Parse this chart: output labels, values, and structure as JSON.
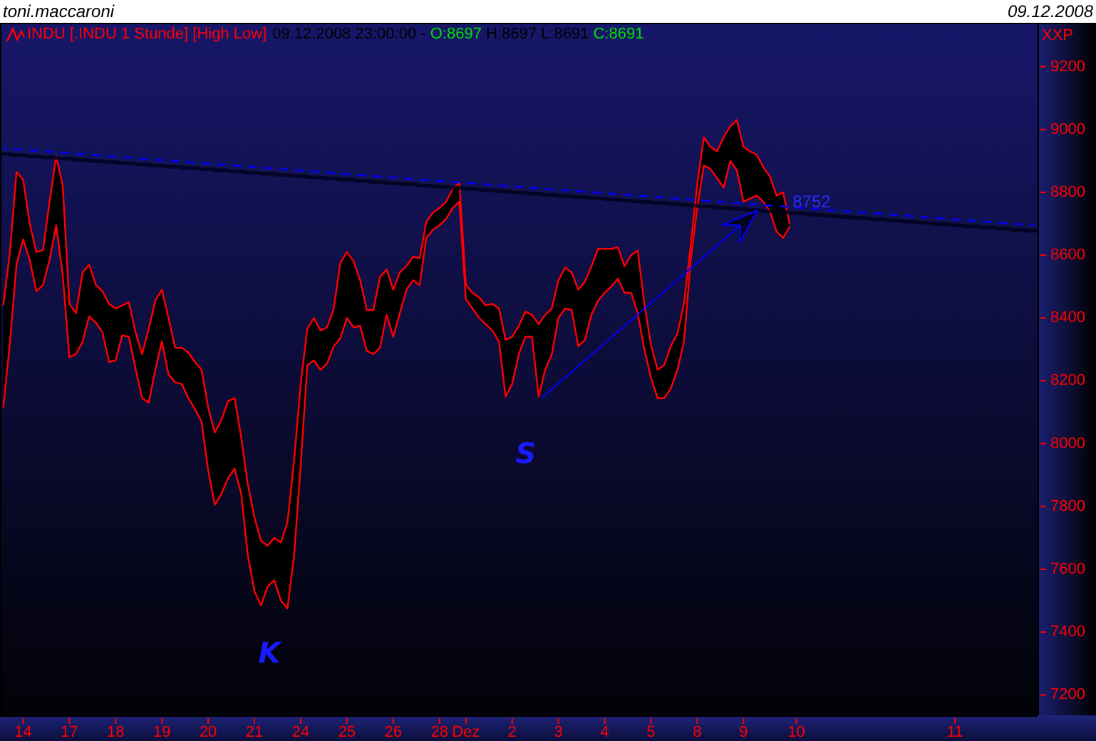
{
  "chart_data": {
    "type": "line",
    "title": "INDU [.INDU 1 Stunde] [High Low]",
    "subtitle": "09.12.2008 23:00:00 - O:8697 H:8697 L:8691 C:8691",
    "categories": [
      null,
      null,
      null,
      "14",
      null,
      null,
      null,
      null,
      null,
      null,
      "17",
      null,
      null,
      null,
      null,
      null,
      null,
      "18",
      null,
      null,
      null,
      null,
      null,
      null,
      "19",
      null,
      null,
      null,
      null,
      null,
      null,
      "20",
      null,
      null,
      null,
      null,
      null,
      null,
      "21",
      null,
      null,
      null,
      null,
      null,
      null,
      "24",
      null,
      null,
      null,
      null,
      null,
      null,
      "25",
      null,
      null,
      null,
      null,
      null,
      null,
      "26",
      null,
      null,
      null,
      null,
      null,
      null,
      "28",
      null,
      null,
      null,
      "Dez",
      null,
      null,
      null,
      null,
      null,
      null,
      "2",
      null,
      null,
      null,
      null,
      null,
      null,
      "3",
      null,
      null,
      null,
      null,
      null,
      null,
      "4",
      null,
      null,
      null,
      null,
      null,
      null,
      "5",
      null,
      null,
      null,
      null,
      null,
      null,
      "8",
      null,
      null,
      null,
      null,
      null,
      null,
      "9",
      null,
      null,
      null,
      null,
      null,
      null,
      null,
      "10",
      null,
      null,
      null,
      null,
      null,
      null,
      null,
      null,
      null,
      null,
      null,
      null,
      null,
      null,
      null,
      null,
      null,
      null,
      null,
      null,
      null,
      null,
      null,
      "11",
      null,
      null,
      null,
      null,
      null,
      null,
      null,
      null,
      null,
      null,
      null,
      null
    ],
    "series": [
      {
        "color": "#ff0000",
        "values": [
          8440,
          8610,
          8865,
          8840,
          8700,
          8610,
          8615,
          8770,
          8915,
          8820,
          8445,
          8415,
          8545,
          8570,
          8505,
          8485,
          8445,
          8430,
          8440,
          8450,
          8355,
          8285,
          8365,
          8455,
          8490,
          8400,
          8305,
          8305,
          8290,
          8260,
          8235,
          8115,
          8035,
          8075,
          8135,
          8145,
          8020,
          7870,
          7765,
          7690,
          7675,
          7700,
          7685,
          7750,
          7945,
          8190,
          8365,
          8400,
          8360,
          8370,
          8430,
          8575,
          8610,
          8580,
          8520,
          8425,
          8425,
          8530,
          8555,
          8490,
          8545,
          8565,
          8595,
          8590,
          8705,
          8735,
          8750,
          8770,
          8810,
          8830,
          8505,
          8480,
          8465,
          8440,
          8445,
          8430,
          8330,
          8340,
          8375,
          8420,
          8410,
          8380,
          8410,
          8430,
          8520,
          8560,
          8545,
          8490,
          8515,
          8565,
          8620,
          8620,
          8620,
          8625,
          8565,
          8600,
          8615,
          8445,
          8315,
          8235,
          8250,
          8310,
          8350,
          8445,
          8630,
          8825,
          8975,
          8945,
          8930,
          8975,
          9010,
          9030,
          8945,
          8930,
          8920,
          8880,
          8850,
          8790,
          8800,
          8697,
          null,
          null,
          null,
          null,
          null,
          null,
          null,
          null,
          null,
          null,
          null,
          null,
          null,
          null,
          null,
          null,
          null,
          null,
          null,
          null,
          null,
          null,
          null,
          null,
          null,
          null,
          null,
          null,
          null,
          null,
          null,
          null,
          null,
          null,
          null,
          null,
          null
        ],
        "lower": [
          8115,
          8320,
          8570,
          8650,
          8585,
          8485,
          8505,
          8585,
          8695,
          8535,
          8275,
          8285,
          8325,
          8405,
          8385,
          8355,
          8260,
          8265,
          8345,
          8340,
          8240,
          8145,
          8130,
          8235,
          8325,
          8220,
          8195,
          8190,
          8145,
          8110,
          8070,
          7915,
          7805,
          7840,
          7890,
          7920,
          7840,
          7645,
          7530,
          7485,
          7545,
          7565,
          7500,
          7475,
          7645,
          7930,
          8250,
          8265,
          8235,
          8255,
          8310,
          8335,
          8400,
          8370,
          8375,
          8295,
          8285,
          8305,
          8410,
          8340,
          8415,
          8490,
          8520,
          8505,
          8655,
          8680,
          8695,
          8715,
          8750,
          8770,
          8460,
          8430,
          8400,
          8380,
          8360,
          8325,
          8150,
          8190,
          8285,
          8340,
          8340,
          8150,
          8235,
          8285,
          8400,
          8430,
          8425,
          8310,
          8330,
          8410,
          8455,
          8480,
          8500,
          8525,
          8480,
          8480,
          8415,
          8300,
          8210,
          8145,
          8145,
          8175,
          8235,
          8325,
          8580,
          8750,
          8885,
          8875,
          8845,
          8815,
          8900,
          8870,
          8770,
          8780,
          8790,
          8770,
          8740,
          8675,
          8655,
          8691,
          null,
          null,
          null,
          null,
          null,
          null,
          null,
          null,
          null,
          null,
          null,
          null,
          null,
          null,
          null,
          null,
          null,
          null,
          null,
          null,
          null,
          null,
          null,
          null,
          null,
          null,
          null,
          null,
          null,
          null,
          null,
          null,
          null,
          null,
          null,
          null,
          null
        ],
        "upper": [
          8440,
          8610,
          8865,
          8840,
          8700,
          8610,
          8615,
          8770,
          8915,
          8820,
          8445,
          8415,
          8545,
          8570,
          8505,
          8485,
          8445,
          8430,
          8440,
          8450,
          8355,
          8285,
          8365,
          8455,
          8490,
          8400,
          8305,
          8305,
          8290,
          8260,
          8235,
          8115,
          8035,
          8075,
          8135,
          8145,
          8020,
          7870,
          7765,
          7690,
          7675,
          7700,
          7685,
          7750,
          7945,
          8190,
          8365,
          8400,
          8360,
          8370,
          8430,
          8575,
          8610,
          8580,
          8520,
          8425,
          8425,
          8530,
          8555,
          8490,
          8545,
          8565,
          8595,
          8590,
          8705,
          8735,
          8750,
          8770,
          8810,
          8830,
          8505,
          8480,
          8465,
          8440,
          8445,
          8430,
          8330,
          8340,
          8375,
          8420,
          8410,
          8380,
          8410,
          8430,
          8520,
          8560,
          8545,
          8490,
          8515,
          8565,
          8620,
          8620,
          8620,
          8625,
          8565,
          8600,
          8615,
          8445,
          8315,
          8235,
          8250,
          8310,
          8350,
          8445,
          8630,
          8825,
          8975,
          8945,
          8930,
          8975,
          9010,
          9030,
          8945,
          8930,
          8920,
          8880,
          8850,
          8790,
          8800,
          8697,
          null,
          null,
          null,
          null,
          null,
          null,
          null,
          null,
          null,
          null,
          null,
          null,
          null,
          null,
          null,
          null,
          null,
          null,
          null,
          null,
          null,
          null,
          null,
          null,
          null,
          null,
          null,
          null,
          null,
          null,
          null,
          null,
          null,
          null,
          null,
          null,
          null
        ]
      },
      {
        "color": "#ff0000",
        "values": [
          8115,
          8320,
          8570,
          8650,
          8585,
          8485,
          8505,
          8585,
          8695,
          8535,
          8275,
          8285,
          8325,
          8405,
          8385,
          8355,
          8260,
          8265,
          8345,
          8340,
          8240,
          8145,
          8130,
          8235,
          8325,
          8220,
          8195,
          8190,
          8145,
          8110,
          8070,
          7915,
          7805,
          7840,
          7890,
          7920,
          7840,
          7645,
          7530,
          7485,
          7545,
          7565,
          7500,
          7475,
          7645,
          7930,
          8250,
          8265,
          8235,
          8255,
          8310,
          8335,
          8400,
          8370,
          8375,
          8295,
          8285,
          8305,
          8410,
          8340,
          8415,
          8490,
          8520,
          8505,
          8655,
          8680,
          8695,
          8715,
          8750,
          8770,
          8460,
          8430,
          8400,
          8380,
          8360,
          8325,
          8150,
          8190,
          8285,
          8340,
          8340,
          8150,
          8235,
          8285,
          8400,
          8430,
          8425,
          8310,
          8330,
          8410,
          8455,
          8480,
          8500,
          8525,
          8480,
          8480,
          8415,
          8300,
          8210,
          8145,
          8145,
          8175,
          8235,
          8325,
          8580,
          8750,
          8885,
          8875,
          8845,
          8815,
          8900,
          8870,
          8770,
          8780,
          8790,
          8770,
          8740,
          8675,
          8655,
          8691,
          null,
          null,
          null,
          null,
          null,
          null,
          null,
          null,
          null,
          null,
          null,
          null,
          null,
          null,
          null,
          null,
          null,
          null,
          null,
          null,
          null,
          null,
          null,
          null,
          null,
          null,
          null,
          null,
          null,
          null,
          null,
          null,
          null,
          null,
          null,
          null,
          null
        ]
      },
      {
        "type": "line",
        "color": "#0000ff",
        "line_style": "dashed",
        "values": [
          8940,
          null,
          null,
          null,
          null,
          null,
          null,
          null,
          null,
          null,
          null,
          null,
          null,
          null,
          null,
          null,
          null,
          null,
          null,
          null,
          null,
          null,
          null,
          null,
          null,
          null,
          null,
          null,
          null,
          null,
          null,
          null,
          null,
          null,
          null,
          null,
          null,
          null,
          null,
          null,
          null,
          null,
          null,
          null,
          null,
          null,
          null,
          null,
          null,
          null,
          null,
          null,
          null,
          null,
          null,
          null,
          null,
          null,
          null,
          null,
          null,
          null,
          null,
          null,
          null,
          null,
          null,
          null,
          null,
          null,
          null,
          null,
          null,
          null,
          null,
          null,
          null,
          null,
          null,
          null,
          null,
          null,
          null,
          null,
          null,
          null,
          null,
          null,
          null,
          null,
          null,
          null,
          null,
          null,
          null,
          null,
          null,
          null,
          null,
          null,
          null,
          null,
          null,
          null,
          null,
          null,
          null,
          null,
          null,
          null,
          null,
          null,
          null,
          null,
          null,
          null,
          null,
          null,
          null,
          null,
          null,
          null,
          null,
          null,
          null,
          null,
          null,
          null,
          null,
          null,
          null,
          null,
          null,
          null,
          null,
          null,
          null,
          null,
          null,
          null,
          null,
          null,
          null,
          null,
          null,
          null,
          null,
          null,
          null,
          null,
          null,
          null,
          null,
          null,
          null,
          null,
          8695
        ]
      }
    ],
    "ylim": [
      7135,
      9335
    ],
    "yticks": [
      7200,
      7400,
      7600,
      7800,
      8000,
      8200,
      8400,
      8600,
      8800,
      9000,
      9200
    ],
    "annotations": [
      "toni.maccaroni",
      "09.12.2008",
      "XXP",
      "K",
      "S",
      {
        "text": "8752",
        "y": 8752
      }
    ]
  }
}
